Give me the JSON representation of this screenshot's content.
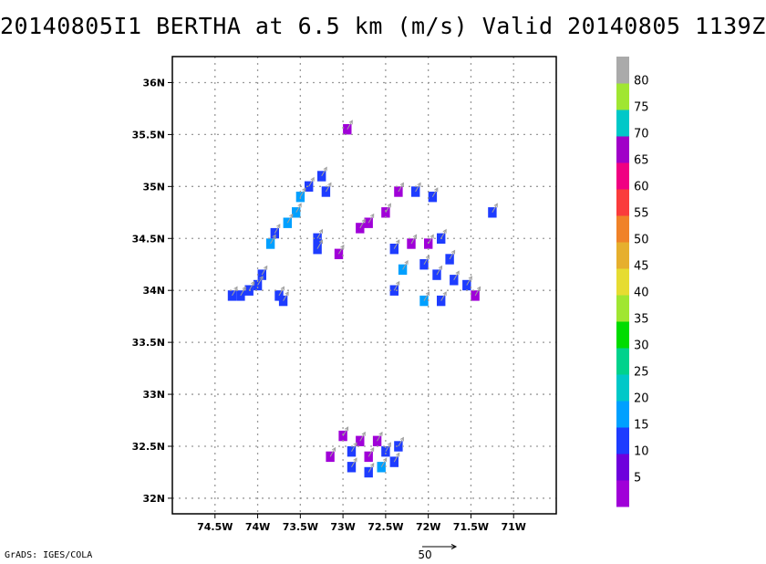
{
  "title": "20140805I1  BERTHA at 6.5 km (m/s) Valid 20140805  1139Z",
  "footer": {
    "credit": "GrADS: IGES/COLA",
    "ref_vector_label": "50"
  },
  "colors": {
    "gridline": "#9a9a9a",
    "vector": "#a0a0a0"
  },
  "chart_data": {
    "type": "heatmap",
    "title": "20140805I1  BERTHA at 6.5 km (m/s) Valid 20140805  1139Z",
    "xlabel": "",
    "ylabel": "",
    "xlim": [
      -75.0,
      -70.5
    ],
    "ylim": [
      31.85,
      36.25
    ],
    "grid": true,
    "x_ticks": [
      -74.5,
      -74.0,
      -73.5,
      -73.0,
      -72.5,
      -72.0,
      -71.5,
      -71.0
    ],
    "x_tick_labels": [
      "74.5W",
      "74W",
      "73.5W",
      "73W",
      "72.5W",
      "72W",
      "71.5W",
      "71W"
    ],
    "y_ticks": [
      32.0,
      32.5,
      33.0,
      33.5,
      34.0,
      34.5,
      35.0,
      35.5,
      36.0
    ],
    "y_tick_labels": [
      "32N",
      "32.5N",
      "33N",
      "33.5N",
      "34N",
      "34.5N",
      "35N",
      "35.5N",
      "36N"
    ],
    "colorbar": {
      "labels": [
        "5",
        "10",
        "15",
        "20",
        "25",
        "30",
        "35",
        "40",
        "45",
        "50",
        "55",
        "60",
        "65",
        "70",
        "75",
        "80"
      ],
      "colors": [
        "#a000d8",
        "#6e00dc",
        "#1e3cff",
        "#00a0ff",
        "#00c8c8",
        "#00d28c",
        "#00dc00",
        "#a0e632",
        "#e6dc32",
        "#e6af2d",
        "#f08228",
        "#fa3c3c",
        "#f00082",
        "#a000c8",
        "#00c8c8",
        "#a0e632",
        "#aaaaaa"
      ]
    },
    "series": [
      {
        "cells": [
          [
            -74.3,
            33.95,
            10
          ],
          [
            -74.2,
            33.95,
            10
          ],
          [
            -74.1,
            34.0,
            10
          ],
          [
            -74.0,
            34.05,
            10
          ],
          [
            -73.95,
            34.15,
            10
          ],
          [
            -73.75,
            33.95,
            10
          ],
          [
            -73.7,
            33.9,
            10
          ]
        ]
      },
      {
        "cells": [
          [
            -73.85,
            34.45,
            15
          ],
          [
            -73.8,
            34.55,
            10
          ],
          [
            -73.65,
            34.65,
            15
          ],
          [
            -73.55,
            34.75,
            15
          ],
          [
            -73.5,
            34.9,
            15
          ],
          [
            -73.4,
            35.0,
            10
          ],
          [
            -73.25,
            35.1,
            10
          ],
          [
            -73.2,
            34.95,
            10
          ],
          [
            -73.3,
            34.5,
            10
          ],
          [
            -73.3,
            34.4,
            10
          ],
          [
            -73.05,
            34.35,
            5
          ],
          [
            -72.95,
            35.55,
            5
          ]
        ]
      },
      {
        "cells": [
          [
            -72.8,
            34.6,
            5
          ],
          [
            -72.7,
            34.65,
            5
          ],
          [
            -72.5,
            34.75,
            5
          ],
          [
            -72.35,
            34.95,
            5
          ],
          [
            -72.15,
            34.95,
            10
          ],
          [
            -71.95,
            34.9,
            10
          ],
          [
            -71.25,
            34.75,
            10
          ],
          [
            -72.4,
            34.4,
            10
          ],
          [
            -72.2,
            34.45,
            5
          ],
          [
            -72.0,
            34.45,
            5
          ],
          [
            -71.85,
            34.5,
            10
          ],
          [
            -72.3,
            34.2,
            15
          ],
          [
            -72.05,
            34.25,
            10
          ],
          [
            -71.9,
            34.15,
            10
          ],
          [
            -71.7,
            34.1,
            10
          ],
          [
            -71.55,
            34.05,
            10
          ],
          [
            -71.45,
            33.95,
            5
          ],
          [
            -72.05,
            33.9,
            15
          ],
          [
            -71.85,
            33.9,
            10
          ],
          [
            -72.4,
            34.0,
            10
          ],
          [
            -71.75,
            34.3,
            10
          ]
        ]
      },
      {
        "cells": [
          [
            -73.0,
            32.6,
            5
          ],
          [
            -72.8,
            32.55,
            5
          ],
          [
            -72.6,
            32.55,
            5
          ],
          [
            -72.9,
            32.45,
            10
          ],
          [
            -72.7,
            32.4,
            5
          ],
          [
            -72.5,
            32.45,
            10
          ],
          [
            -73.15,
            32.4,
            5
          ],
          [
            -72.9,
            32.3,
            10
          ],
          [
            -72.7,
            32.25,
            10
          ],
          [
            -72.55,
            32.3,
            15
          ],
          [
            -72.4,
            32.35,
            10
          ],
          [
            -72.35,
            32.5,
            10
          ]
        ]
      }
    ]
  }
}
